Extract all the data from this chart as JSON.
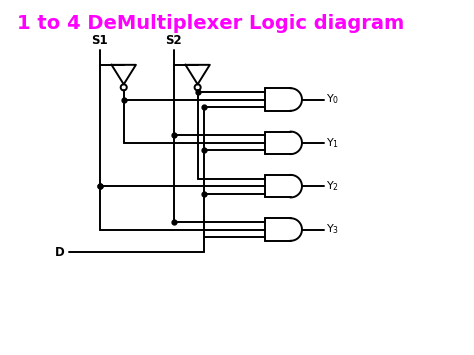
{
  "title": "1 to 4 DeMultiplexer Logic diagram",
  "title_color": "#FF00FF",
  "title_fontsize": 14,
  "bg_color": "#FFFFFF",
  "line_color": "#000000",
  "line_width": 1.4,
  "s1_label": "S1",
  "s2_label": "S2",
  "d_label": "D",
  "outputs": [
    "Y$_0$",
    "Y$_1$",
    "Y$_2$",
    "Y$_3$"
  ],
  "figsize": [
    4.74,
    3.55
  ],
  "dpi": 100
}
